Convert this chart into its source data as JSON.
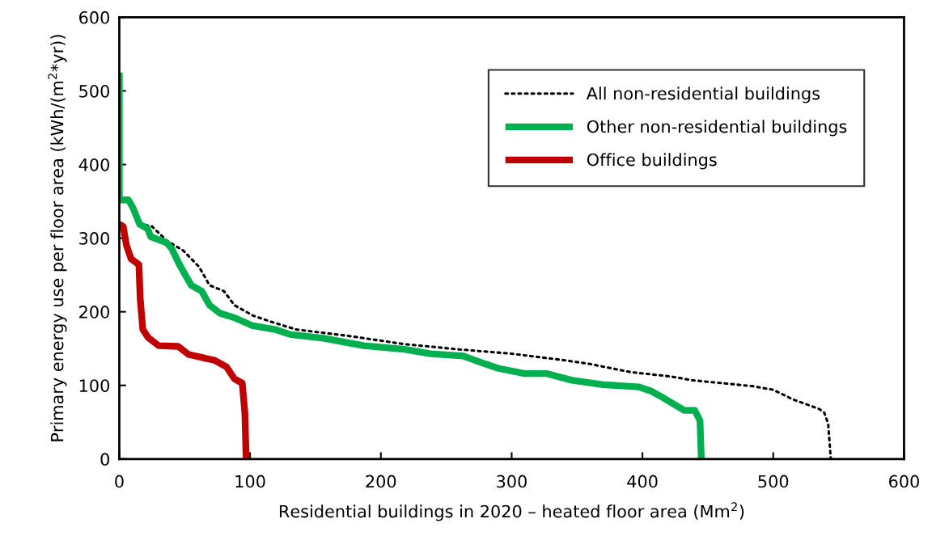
{
  "chart_data": {
    "type": "line",
    "xlabel": "Residential buildings in 2020 – heated floor area (Mm$^{2}$)",
    "ylabel": "Primary energy use per floor area (kWh/(m$^{2}$*yr))",
    "xlim": [
      0,
      600
    ],
    "xticks": [
      0,
      100,
      200,
      300,
      400,
      500,
      600
    ],
    "ylim": [
      0,
      600
    ],
    "yticks": [
      0,
      100,
      200,
      300,
      400,
      500,
      600
    ],
    "grid": false,
    "legend": "top right",
    "series": [
      {
        "name": "All non-residential buildings",
        "color": "#000000",
        "line_style": "dotted",
        "x": [
          20,
          25,
          36,
          49,
          61,
          69,
          80,
          88,
          102,
          115,
          135,
          176,
          218,
          259,
          300,
          341,
          360,
          391,
          422,
          438,
          484,
          500,
          515,
          535,
          539,
          542,
          544
        ],
        "values": [
          318,
          316,
          297,
          283,
          261,
          236,
          228,
          209,
          195,
          187,
          176,
          167,
          156,
          149,
          143,
          134,
          129,
          118,
          112,
          107,
          99,
          94,
          81,
          68,
          63,
          48,
          0
        ]
      },
      {
        "name": "Other non-residential buildings",
        "color": "#00b050",
        "line_style": "solid",
        "x": [
          0,
          0,
          7,
          10.5,
          15.5,
          21.6,
          24,
          36,
          40,
          46,
          55,
          63,
          69,
          77,
          88,
          102,
          119,
          131,
          156,
          187,
          218,
          238,
          263,
          280,
          290,
          310,
          327,
          346,
          370,
          397,
          407,
          416,
          432,
          440,
          444,
          445
        ],
        "values": [
          525,
          352,
          352,
          341,
          319,
          313,
          302,
          294,
          286,
          264,
          236,
          228,
          209,
          198,
          192,
          181,
          176,
          169,
          164,
          154,
          149,
          143,
          140,
          129,
          123,
          116,
          116,
          107,
          101,
          98,
          92,
          83,
          66,
          66,
          52,
          0
        ]
      },
      {
        "name": "Office buildings",
        "color": "#c00000",
        "line_style": "solid",
        "x": [
          0,
          3,
          5.5,
          9,
          15,
          16,
          18,
          22,
          30,
          45,
          53,
          73,
          82,
          88,
          94,
          96,
          97
        ],
        "values": [
          319,
          316,
          290,
          272,
          264,
          217,
          176,
          165,
          154,
          153,
          142,
          134,
          125,
          109,
          103,
          63,
          0
        ]
      }
    ]
  }
}
